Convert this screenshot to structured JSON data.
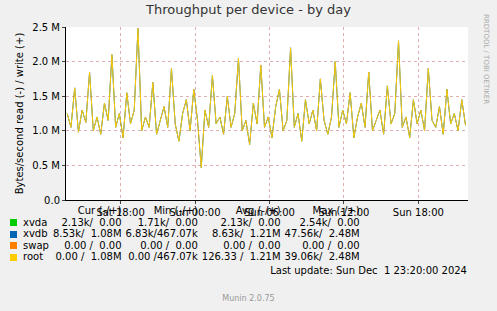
{
  "chart_data": {
    "type": "line",
    "title": "Throughput per device - by day",
    "y_label": "Bytes/second read (-) / write (+)",
    "grid": true,
    "x": [
      13.7,
      14,
      14.3,
      14.6,
      14.9,
      15.2,
      15.5,
      15.8,
      16.1,
      16.4,
      16.7,
      17,
      17.3,
      17.6,
      17.9,
      18.2,
      18.5,
      18.8,
      19.1,
      19.4,
      19.7,
      20,
      20.3,
      20.6,
      20.9,
      21.2,
      21.5,
      21.8,
      22.1,
      22.4,
      22.7,
      23,
      23.3,
      23.6,
      23.9,
      24.2,
      24.5,
      24.8,
      25.1,
      25.4,
      25.7,
      26,
      26.3,
      26.6,
      26.9,
      27.2,
      27.5,
      27.8,
      28.1,
      28.4,
      28.7,
      29,
      29.3,
      29.6,
      29.9,
      30.2,
      30.5,
      30.8,
      31.1,
      31.4,
      31.7,
      32,
      32.3,
      32.6,
      32.9,
      33.2,
      33.5,
      33.8,
      34.1,
      34.4,
      34.7,
      35,
      35.3,
      35.6,
      35.9,
      36.2,
      36.5,
      36.8,
      37.1,
      37.4,
      37.7,
      38,
      38.3,
      38.6,
      38.9,
      39.2,
      39.5,
      39.8,
      40.1,
      40.4,
      40.7,
      41,
      41.3,
      41.6,
      41.9,
      42.2,
      42.5,
      42.8,
      43.1,
      43.4,
      43.7,
      44,
      44.3,
      44.6,
      44.9,
      45.2,
      45.5,
      45.8
    ],
    "xlim": [
      13.6,
      46.0
    ],
    "xticks": [
      {
        "value": 18,
        "label": "Sat 18:00"
      },
      {
        "value": 24,
        "label": "Sun 00:00"
      },
      {
        "value": 30,
        "label": "Sun 06:00"
      },
      {
        "value": 36,
        "label": "Sun 12:00"
      },
      {
        "value": 42,
        "label": "Sun 18:00"
      }
    ],
    "ylim": [
      0,
      2500000
    ],
    "yticks": [
      {
        "value": 0,
        "label": "0.0"
      },
      {
        "value": 500000,
        "label": "0.5 M"
      },
      {
        "value": 1000000,
        "label": "1.0 M"
      },
      {
        "value": 1500000,
        "label": "1.5 M"
      },
      {
        "value": 2000000,
        "label": "2.0 M"
      },
      {
        "value": 2500000,
        "label": "2.5 M"
      }
    ],
    "series": [
      {
        "name": "xvdb",
        "color": "#0066b3",
        "values": [
          1250000,
          1050000,
          1620000,
          980000,
          1300000,
          1120000,
          1850000,
          1000000,
          1200000,
          950000,
          1400000,
          1150000,
          2100000,
          1050000,
          1250000,
          900000,
          1550000,
          1100000,
          1300000,
          2480000,
          1000000,
          1200000,
          1050000,
          1700000,
          950000,
          1150000,
          1350000,
          1050000,
          1900000,
          1100000,
          850000,
          1250000,
          1450000,
          1000000,
          1600000,
          1150000,
          470000,
          1300000,
          1050000,
          1800000,
          1100000,
          1200000,
          950000,
          1500000,
          1050000,
          1250000,
          2050000,
          1000000,
          1150000,
          800000,
          1400000,
          1100000,
          1950000,
          1050000,
          1200000,
          900000,
          1350000,
          1600000,
          1000000,
          1150000,
          2200000,
          1050000,
          1250000,
          850000,
          1450000,
          1100000,
          1300000,
          1000000,
          1750000,
          1150000,
          950000,
          1200000,
          2000000,
          1050000,
          1300000,
          1100000,
          1550000,
          900000,
          1200000,
          1400000,
          1050000,
          1850000,
          1000000,
          1150000,
          1300000,
          950000,
          1650000,
          1100000,
          1250000,
          2300000,
          1050000,
          1200000,
          900000,
          1450000,
          1100000,
          1300000,
          1000000,
          1900000,
          1150000,
          1050000,
          1350000,
          950000,
          1600000,
          1100000,
          1250000,
          1000000,
          1450000,
          1080000
        ]
      },
      {
        "name": "root",
        "color": "#ffcc00",
        "values": [
          1250000,
          1050000,
          1620000,
          980000,
          1300000,
          1120000,
          1850000,
          1000000,
          1200000,
          950000,
          1400000,
          1150000,
          2100000,
          1050000,
          1250000,
          900000,
          1550000,
          1100000,
          1300000,
          2480000,
          1000000,
          1200000,
          1050000,
          1700000,
          950000,
          1150000,
          1350000,
          1050000,
          1900000,
          1100000,
          850000,
          1250000,
          1450000,
          1000000,
          1600000,
          1150000,
          470000,
          1300000,
          1050000,
          1800000,
          1100000,
          1200000,
          950000,
          1500000,
          1050000,
          1250000,
          2050000,
          1000000,
          1150000,
          800000,
          1400000,
          1100000,
          1950000,
          1050000,
          1200000,
          900000,
          1350000,
          1600000,
          1000000,
          1150000,
          2200000,
          1050000,
          1250000,
          850000,
          1450000,
          1100000,
          1300000,
          1000000,
          1750000,
          1150000,
          950000,
          1200000,
          2000000,
          1050000,
          1300000,
          1100000,
          1550000,
          900000,
          1200000,
          1400000,
          1050000,
          1850000,
          1000000,
          1150000,
          1300000,
          950000,
          1650000,
          1100000,
          1250000,
          2300000,
          1050000,
          1200000,
          900000,
          1450000,
          1100000,
          1300000,
          1000000,
          1900000,
          1150000,
          1050000,
          1350000,
          950000,
          1600000,
          1100000,
          1250000,
          1000000,
          1450000,
          1080000
        ]
      }
    ],
    "legend_table": {
      "header": [
        "Cur (-/+)",
        "Min (-/+)",
        "Avg (-/+)",
        "Max (-/+)"
      ],
      "rows": [
        {
          "name": "xvda",
          "color": "#00cc00",
          "cells": [
            "2.13k/  0.00",
            "1.71k/  0.00",
            "2.13k/  0.00",
            "2.54k/  0.00"
          ]
        },
        {
          "name": "xvdb",
          "color": "#0066b3",
          "cells": [
            "8.53k/  1.08M",
            "6.83k/467.07k",
            "8.63k/  1.21M",
            "47.56k/  2.48M"
          ]
        },
        {
          "name": "swap",
          "color": "#ff8000",
          "cells": [
            "0.00 /  0.00",
            "0.00 /  0.00",
            "0.00 /  0.00",
            "0.00 /  0.00"
          ]
        },
        {
          "name": "root",
          "color": "#ffcc00",
          "cells": [
            "0.00 /  1.08M",
            "0.00 /467.07k",
            "126.33 /  1.21M",
            "39.06k/  2.48M"
          ]
        }
      ]
    },
    "last_update": "Last update: Sun Dec  1 23:20:00 2024",
    "footer": "Munin 2.0.75",
    "side_text": "RRDTOOL / TOBI OETIKER"
  }
}
